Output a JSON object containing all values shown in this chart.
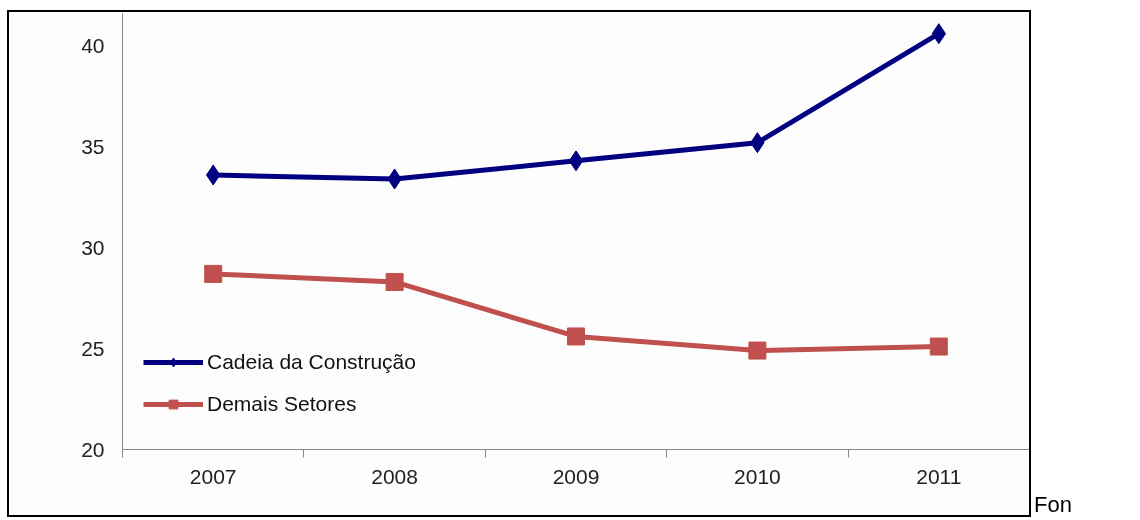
{
  "chart_data": {
    "type": "line",
    "categories": [
      "2007",
      "2008",
      "2009",
      "2010",
      "2011"
    ],
    "series": [
      {
        "name": "Cadeia da Construção",
        "color": "#000080",
        "marker": "diamond",
        "values": [
          33.6,
          33.4,
          34.3,
          35.2,
          40.6
        ]
      },
      {
        "name": "Demais Setores",
        "color": "#c0504d",
        "marker": "square",
        "values": [
          28.7,
          28.3,
          25.6,
          24.9,
          25.1
        ]
      }
    ],
    "ylim": [
      20,
      41.6
    ],
    "yticks": [
      20,
      25,
      30,
      35,
      40
    ],
    "legend": "bottom left",
    "line_style": "solid",
    "annotations": [
      "Fon"
    ]
  }
}
